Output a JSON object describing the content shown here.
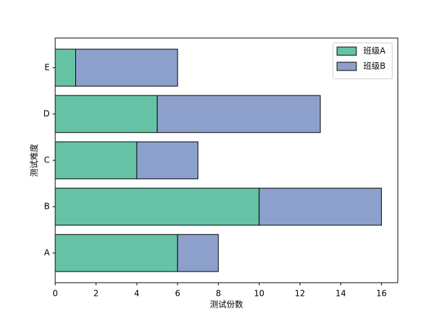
{
  "chart_data": {
    "type": "stacked-barh",
    "categories": [
      "A",
      "B",
      "C",
      "D",
      "E"
    ],
    "series": [
      {
        "name": "班级A",
        "color": "#66c2a5",
        "values": [
          6,
          10,
          4,
          5,
          1
        ]
      },
      {
        "name": "班级B",
        "color": "#8da0cb",
        "values": [
          2,
          6,
          3,
          8,
          5
        ]
      }
    ],
    "xlabel": "测试份数",
    "ylabel": "测试难度",
    "xlim": [
      0,
      16.8
    ],
    "xticks": [
      0,
      2,
      4,
      6,
      8,
      10,
      12,
      14,
      16
    ],
    "ylim": [
      -0.64,
      4.64
    ],
    "legend": "upper-right"
  }
}
